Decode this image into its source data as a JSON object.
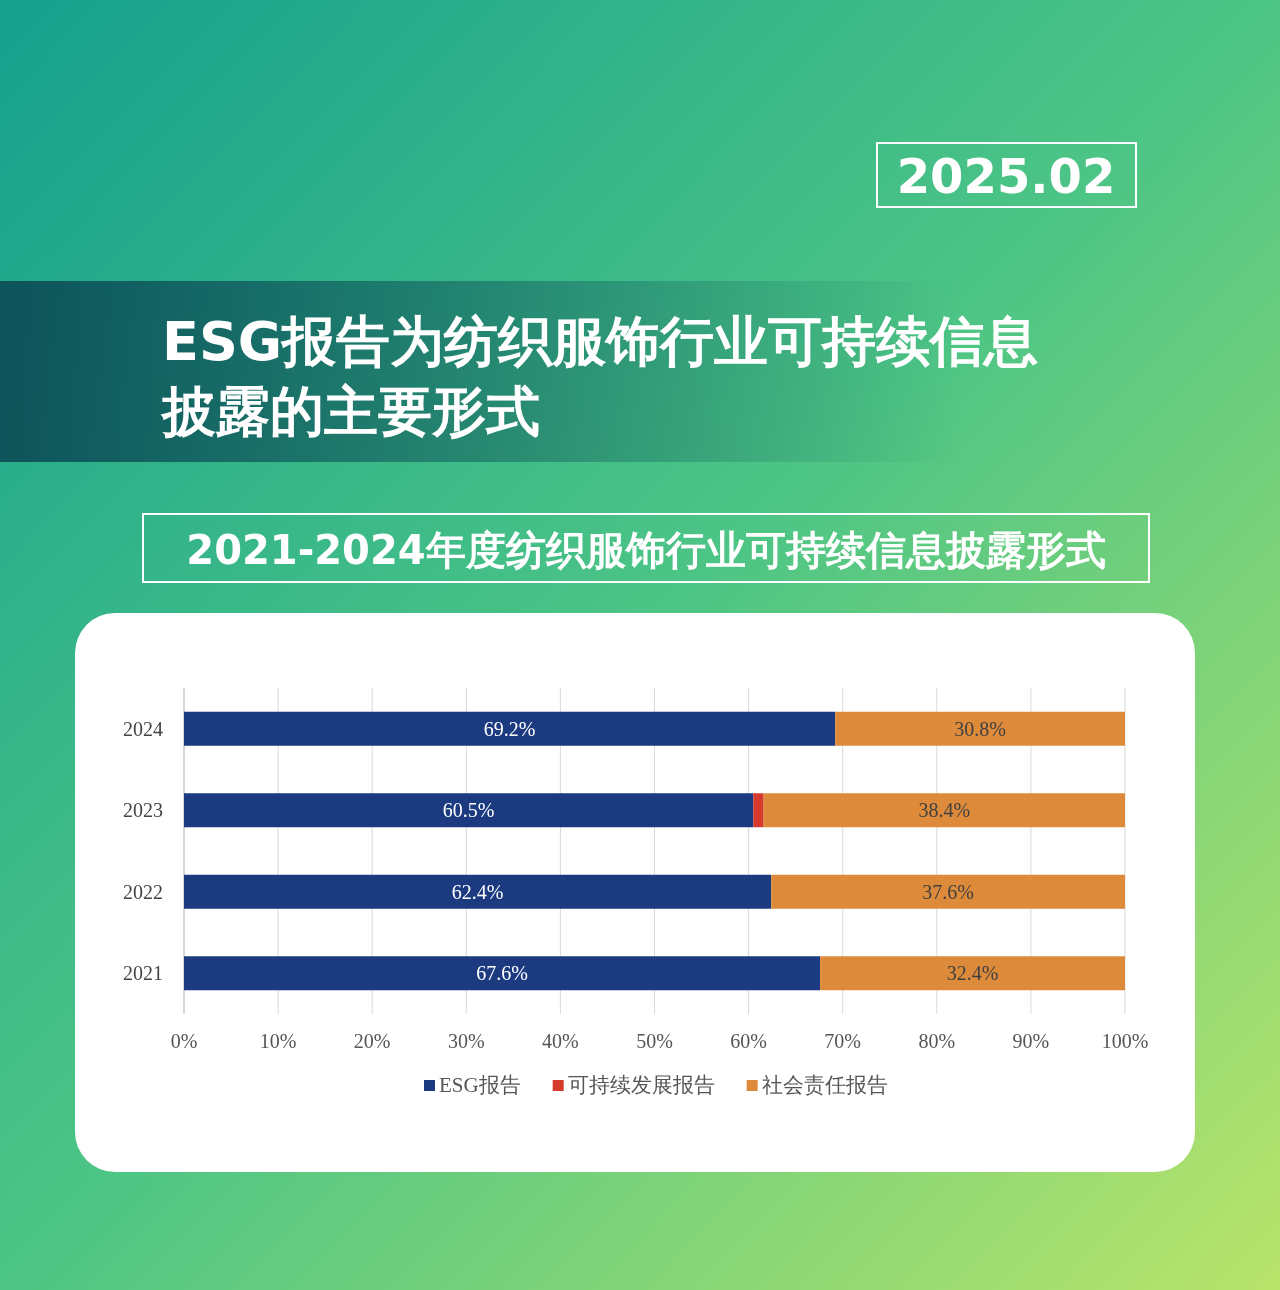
{
  "chart_data": {
    "type": "bar",
    "orientation": "horizontal",
    "stacked": true,
    "title": "ESG报告为纺织服饰行业可持续信息披露的主要形式",
    "subtitle": "2021-2024年度纺织服饰行业可持续信息披露形式",
    "annotations": [
      "2025.02"
    ],
    "categories": [
      "2024",
      "2023",
      "2022",
      "2021"
    ],
    "series": [
      {
        "name": "ESG报告",
        "color": "#1b3a80",
        "values": [
          69.2,
          60.5,
          62.4,
          67.6
        ],
        "value_labels": [
          "69.2%",
          "60.5%",
          "62.4%",
          "67.6%"
        ]
      },
      {
        "name": "可持续发展报告",
        "color": "#d63a2c",
        "values": [
          0,
          1.1,
          0,
          0
        ],
        "value_labels": [
          null,
          null,
          null,
          null
        ]
      },
      {
        "name": "社会责任报告",
        "color": "#dd8b3b",
        "values": [
          30.8,
          38.4,
          37.6,
          32.4
        ],
        "value_labels": [
          "30.8%",
          "38.4%",
          "37.6%",
          "32.4%"
        ]
      }
    ],
    "xlim": [
      0,
      100
    ],
    "xticks": [
      {
        "value": 0,
        "label": "0%"
      },
      {
        "value": 10,
        "label": "10%"
      },
      {
        "value": 20,
        "label": "20%"
      },
      {
        "value": 30,
        "label": "30%"
      },
      {
        "value": 40,
        "label": "40%"
      },
      {
        "value": 50,
        "label": "50%"
      },
      {
        "value": 60,
        "label": "60%"
      },
      {
        "value": 70,
        "label": "70%"
      },
      {
        "value": 80,
        "label": "80%"
      },
      {
        "value": 90,
        "label": "90%"
      },
      {
        "value": 100,
        "label": "100%"
      }
    ],
    "grid": "x",
    "legend": "bottom"
  }
}
